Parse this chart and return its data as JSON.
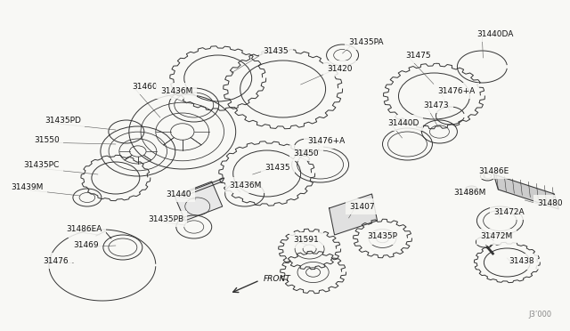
{
  "bg_color": "#f8f8f5",
  "fig_width": 6.4,
  "fig_height": 3.72,
  "dpi": 100,
  "lc": "#333333",
  "lw": 0.7,
  "watermark": "J3’000",
  "labels": [
    [
      "31435",
      290,
      60
    ],
    [
      "31460",
      148,
      100
    ],
    [
      "31436M",
      178,
      105
    ],
    [
      "31435PA",
      390,
      50
    ],
    [
      "31420",
      370,
      80
    ],
    [
      "31475",
      455,
      65
    ],
    [
      "31440DA",
      535,
      42
    ],
    [
      "31476+A",
      490,
      105
    ],
    [
      "31473",
      478,
      120
    ],
    [
      "31440D",
      438,
      140
    ],
    [
      "31476+A",
      348,
      160
    ],
    [
      "31450",
      330,
      175
    ],
    [
      "31435PD",
      52,
      138
    ],
    [
      "31550",
      40,
      160
    ],
    [
      "31435PC",
      28,
      188
    ],
    [
      "31439M",
      14,
      212
    ],
    [
      "31435",
      298,
      190
    ],
    [
      "31436M",
      260,
      210
    ],
    [
      "31440",
      188,
      220
    ],
    [
      "31435PB",
      168,
      248
    ],
    [
      "31486EA",
      76,
      260
    ],
    [
      "31469",
      84,
      278
    ],
    [
      "31476",
      50,
      295
    ],
    [
      "31407",
      395,
      235
    ],
    [
      "31435P",
      415,
      268
    ],
    [
      "31591",
      332,
      272
    ],
    [
      "31472A",
      558,
      240
    ],
    [
      "31472M",
      542,
      268
    ],
    [
      "31438",
      574,
      296
    ],
    [
      "31486M",
      512,
      218
    ],
    [
      "31486E",
      540,
      194
    ],
    [
      "31480",
      606,
      230
    ]
  ]
}
